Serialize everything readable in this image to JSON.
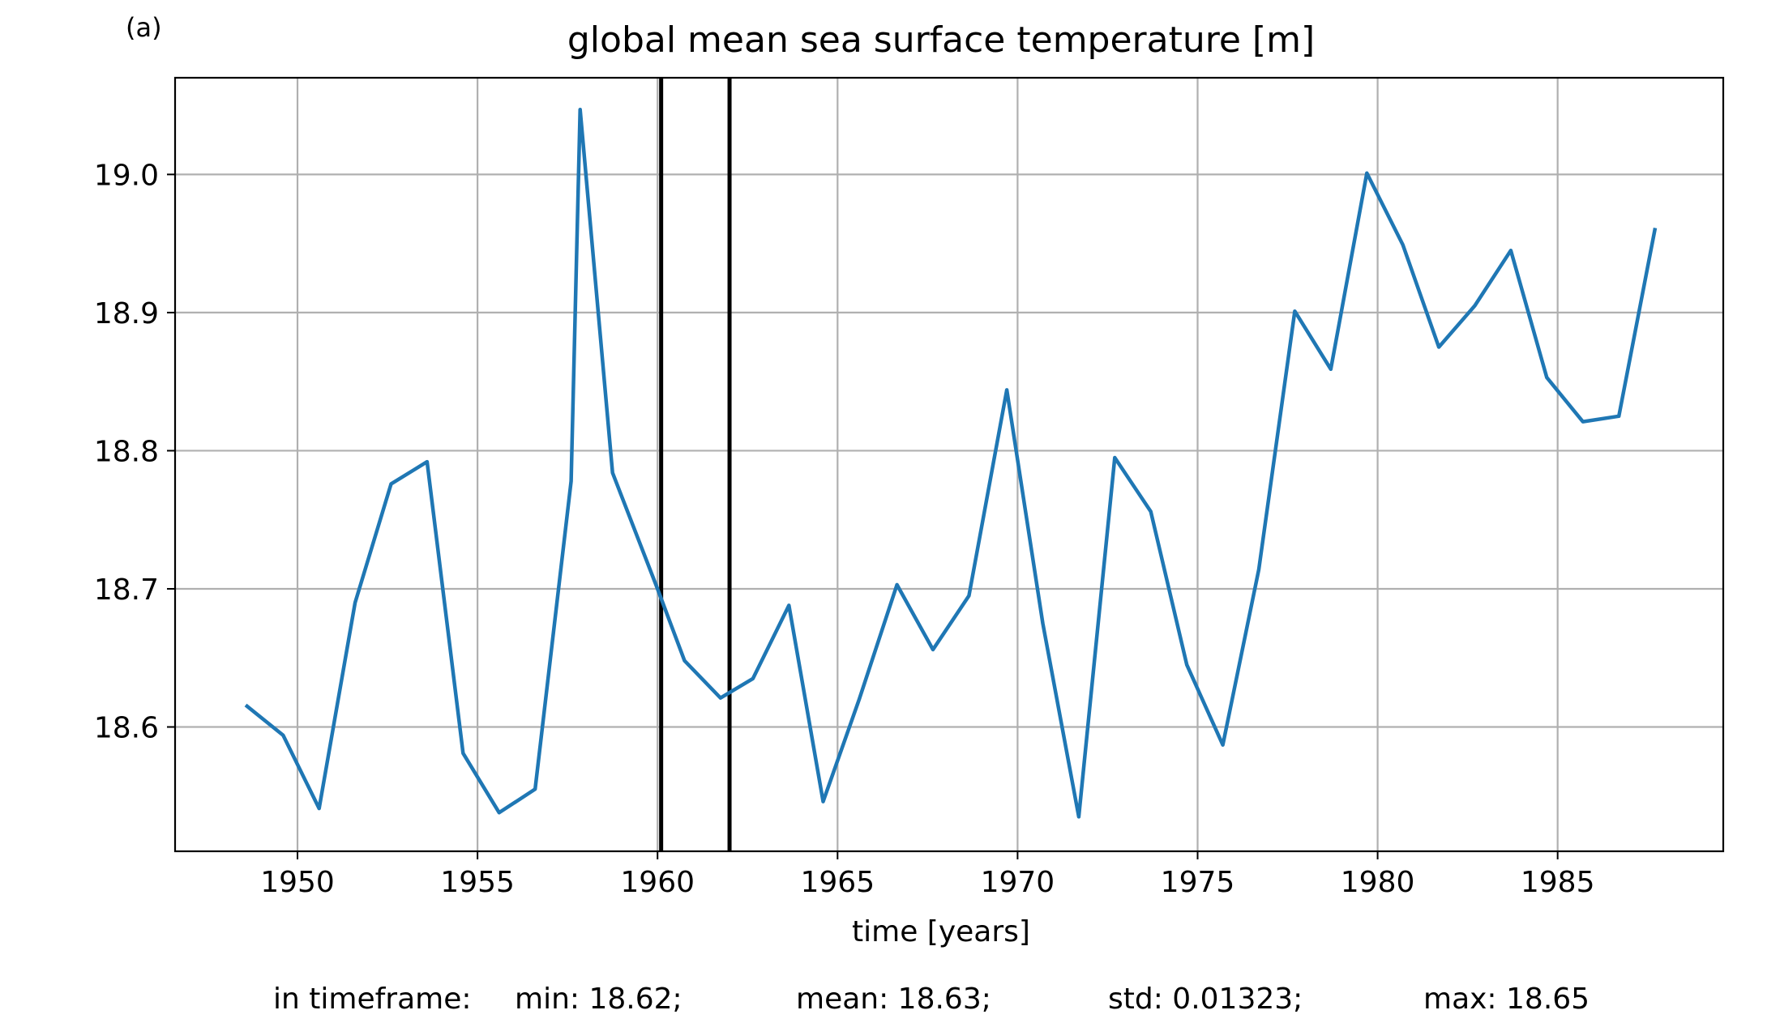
{
  "panel_label": "(a)",
  "chart_data": {
    "type": "line",
    "title": "global mean sea surface temperature [m]",
    "xlabel": "time [years]",
    "ylabel": "",
    "xlim": [
      1946.6,
      1989.6
    ],
    "ylim": [
      18.51,
      19.07
    ],
    "xticks": [
      1950,
      1955,
      1960,
      1965,
      1970,
      1975,
      1980,
      1985
    ],
    "yticks": [
      18.6,
      18.7,
      18.8,
      18.9,
      19.0
    ],
    "ytick_labels": [
      "18.6",
      "18.7",
      "18.8",
      "18.9",
      "19.0"
    ],
    "grid": true,
    "line_color": "#1f77b4",
    "series": [
      {
        "x": [
          1948.6,
          1949.6,
          1950.6,
          1951.6,
          1952.6,
          1953.6,
          1954.6,
          1955.6,
          1956.6,
          1957.6,
          1957.85,
          1958.75,
          1960.0,
          1960.75,
          1961.75,
          1962.65,
          1963.65,
          1964.6,
          1965.6,
          1966.65,
          1967.65,
          1968.65,
          1969.7,
          1970.7,
          1971.7,
          1972.7,
          1973.7,
          1974.7,
          1975.7,
          1976.7,
          1977.7,
          1978.7,
          1979.7,
          1980.7,
          1981.7,
          1982.7,
          1983.7,
          1984.7,
          1985.7,
          1986.7,
          1987.7
        ],
        "y": [
          18.615,
          18.594,
          18.541,
          18.69,
          18.776,
          18.792,
          18.581,
          18.538,
          18.555,
          18.778,
          19.047,
          18.784,
          18.7,
          18.648,
          18.621,
          18.635,
          18.688,
          18.546,
          18.62,
          18.703,
          18.656,
          18.695,
          18.844,
          18.675,
          18.535,
          18.795,
          18.756,
          18.645,
          18.587,
          18.714,
          18.901,
          18.859,
          19.001,
          18.949,
          18.875,
          18.905,
          18.945,
          18.853,
          18.821,
          18.825,
          18.96
        ]
      }
    ],
    "vertical_lines": [
      1960.1,
      1962.0
    ],
    "vline_color": "#000000",
    "stats": {
      "prefix": "in timeframe:",
      "min": "min: 18.62;",
      "mean": "mean: 18.63;",
      "std": "std: 0.01323;",
      "max": "max: 18.65"
    }
  }
}
